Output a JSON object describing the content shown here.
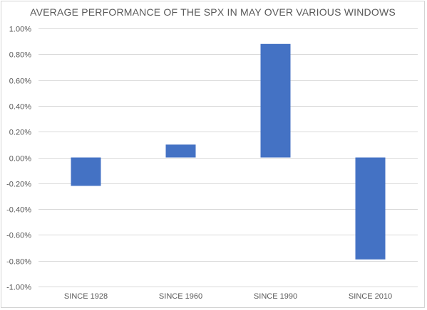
{
  "chart_data": {
    "type": "bar",
    "title": "AVERAGE PERFORMANCE OF THE SPX IN MAY OVER VARIOUS WINDOWS",
    "xlabel": "",
    "ylabel": "",
    "categories": [
      "SINCE 1928",
      "SINCE 1960",
      "SINCE 1990",
      "SINCE 2010"
    ],
    "values": [
      -0.22,
      0.1,
      0.88,
      -0.79
    ],
    "value_unit": "%",
    "ylim": [
      -1.0,
      1.0
    ],
    "yticks": [
      1.0,
      0.8,
      0.6,
      0.4,
      0.2,
      0.0,
      -0.2,
      -0.4,
      -0.6,
      -0.8,
      -1.0
    ],
    "ytick_labels": [
      "1.00%",
      "0.80%",
      "0.60%",
      "0.40%",
      "0.20%",
      "0.00%",
      "-0.20%",
      "-0.40%",
      "-0.60%",
      "-0.80%",
      "-1.00%"
    ],
    "grid": true,
    "legend": "none",
    "bar_color": "#4472c4",
    "gridline_color": "#d9d9d9"
  }
}
